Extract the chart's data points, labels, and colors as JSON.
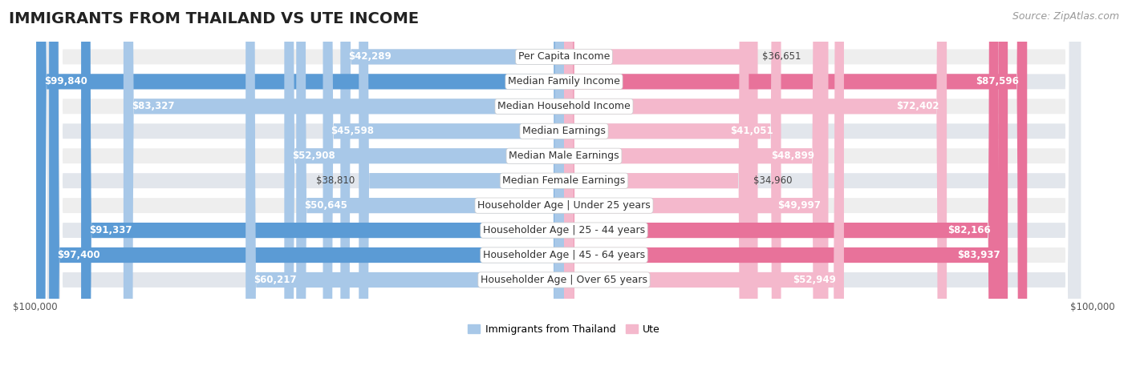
{
  "title": "IMMIGRANTS FROM THAILAND VS UTE INCOME",
  "source": "Source: ZipAtlas.com",
  "categories": [
    "Per Capita Income",
    "Median Family Income",
    "Median Household Income",
    "Median Earnings",
    "Median Male Earnings",
    "Median Female Earnings",
    "Householder Age | Under 25 years",
    "Householder Age | 25 - 44 years",
    "Householder Age | 45 - 64 years",
    "Householder Age | Over 65 years"
  ],
  "thailand_values": [
    42289,
    99840,
    83327,
    45598,
    52908,
    38810,
    50645,
    91337,
    97400,
    60217
  ],
  "ute_values": [
    36651,
    87596,
    72402,
    41051,
    48899,
    34960,
    49997,
    82166,
    83937,
    52949
  ],
  "thailand_color_light": "#a8c8e8",
  "thailand_color_dark": "#5b9bd5",
  "ute_color_light": "#f4b8cc",
  "ute_color_dark": "#e8729a",
  "thailand_label": "Immigrants from Thailand",
  "ute_label": "Ute",
  "x_max": 100000,
  "background_color": "#ffffff",
  "title_fontsize": 14,
  "source_fontsize": 9,
  "label_fontsize": 9,
  "value_fontsize": 8.5,
  "axis_label_fontsize": 8.5,
  "row_bg_even": "#eeeeee",
  "row_bg_odd": "#e2e6ec"
}
